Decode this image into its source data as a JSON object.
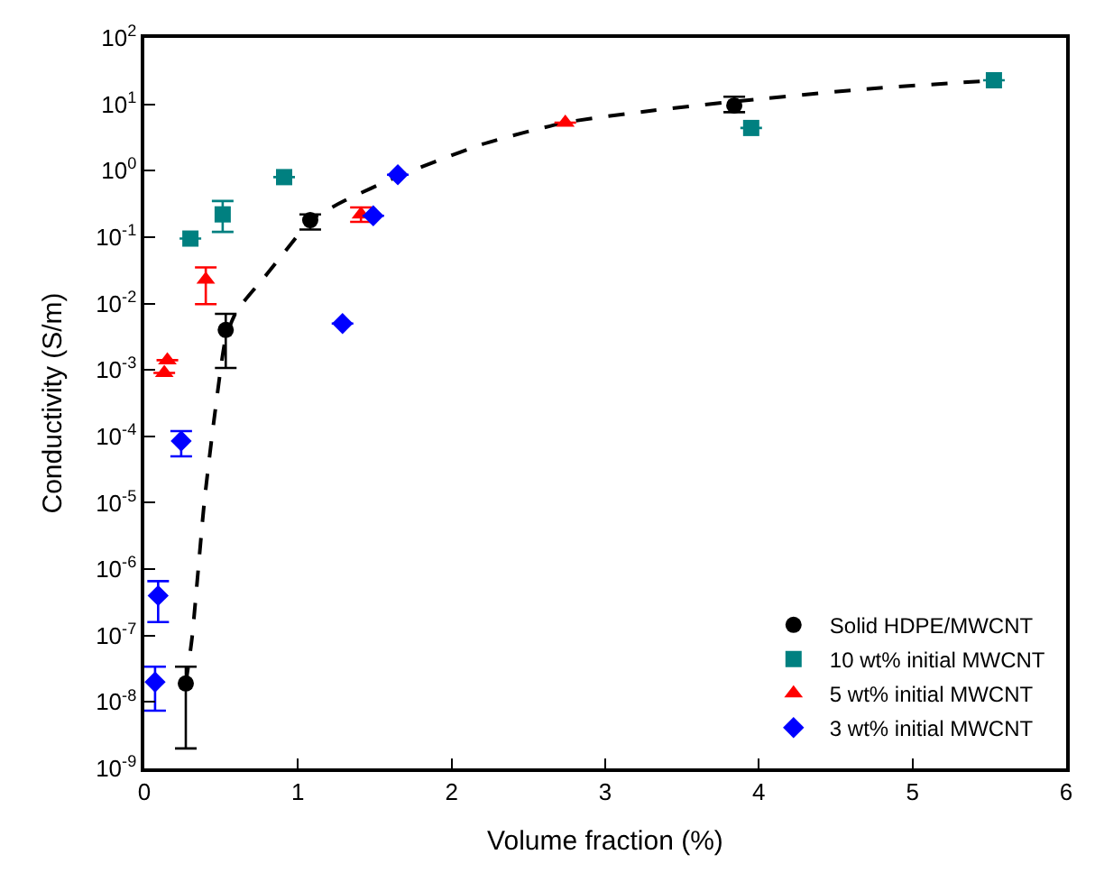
{
  "chart_data": {
    "type": "scatter",
    "xlabel": "Volume fraction (%)",
    "ylabel": "Conductivity (S/m)",
    "xlim": [
      0,
      6
    ],
    "xticks": [
      0,
      1,
      2,
      3,
      4,
      5,
      6
    ],
    "ylim": [
      1e-09,
      100
    ],
    "log": "y",
    "yticks": [
      {
        "value": 1e-09,
        "label": "10$^{-9}$"
      },
      {
        "value": 1e-08,
        "label": "10$^{-8}$"
      },
      {
        "value": 1e-07,
        "label": "10$^{-7}$"
      },
      {
        "value": 1e-06,
        "label": "10$^{-6}$"
      },
      {
        "value": 1e-05,
        "label": "10$^{-5}$"
      },
      {
        "value": 0.0001,
        "label": "10$^{-4}$"
      },
      {
        "value": 0.001,
        "label": "10$^{-3}$"
      },
      {
        "value": 0.01,
        "label": "10$^{-2}$"
      },
      {
        "value": 0.1,
        "label": "10$^{-1}$"
      },
      {
        "value": 1,
        "label": "10$^{0}$"
      },
      {
        "value": 10,
        "label": "10$^{1}$"
      },
      {
        "value": 100,
        "label": "10$^{2}$"
      }
    ],
    "legend": "bottom right",
    "series": [
      {
        "type": "line",
        "color": "#000000",
        "line_style": "dashed",
        "marker": "none",
        "x": [
          0.27,
          0.31,
          0.39,
          0.46,
          0.53,
          0.6,
          0.8,
          1.0,
          1.08,
          1.3,
          1.64,
          2.2,
          2.74,
          3.3,
          3.84,
          4.7,
          5.55
        ],
        "values": [
          1.9e-08,
          9e-08,
          1e-05,
          0.00023,
          0.003,
          0.0076,
          0.028,
          0.107,
          0.18,
          0.35,
          0.8,
          2.5,
          5.3,
          8,
          11,
          17,
          23
        ]
      },
      {
        "name": "Solid HDPE/MWCNT",
        "color": "#000000",
        "marker": "circle",
        "x": [
          0.27,
          0.53,
          1.08,
          3.84
        ],
        "values": [
          1.9e-08,
          0.004,
          0.18,
          9.6
        ],
        "errors": [
          [
            2e-09,
            3.4e-08
          ],
          [
            0.00107,
            0.007
          ],
          [
            0.13,
            0.22
          ],
          [
            7.6,
            13
          ]
        ]
      },
      {
        "name": "10 wt% initial MWCNT",
        "color": "#008080",
        "marker": "square",
        "x": [
          0.3,
          0.51,
          0.91,
          3.95,
          5.53
        ],
        "values": [
          0.095,
          0.22,
          0.8,
          4.4,
          23
        ],
        "errors": [
          null,
          [
            0.12,
            0.35
          ],
          null,
          null,
          null
        ]
      },
      {
        "name": "5 wt% initial MWCNT",
        "color": "#ff0000",
        "marker": "triangle",
        "x": [
          0.13,
          0.15,
          0.4,
          1.41,
          2.74
        ],
        "values": [
          0.0009,
          0.0014,
          0.023,
          0.22,
          5.3
        ],
        "errors": [
          null,
          null,
          [
            0.0098,
            0.035
          ],
          [
            0.17,
            0.28
          ],
          null
        ]
      },
      {
        "name": "3 wt% initial MWCNT",
        "color": "#0000ff",
        "marker": "diamond",
        "x": [
          0.07,
          0.09,
          0.24,
          1.29,
          1.49,
          1.65
        ],
        "values": [
          2e-08,
          4e-07,
          8.5e-05,
          0.005,
          0.21,
          0.87
        ],
        "errors": [
          [
            7.4e-09,
            3.4e-08
          ],
          [
            1.6e-07,
            6.6e-07
          ],
          [
            5e-05,
            0.00012
          ],
          null,
          null,
          null
        ]
      }
    ]
  }
}
